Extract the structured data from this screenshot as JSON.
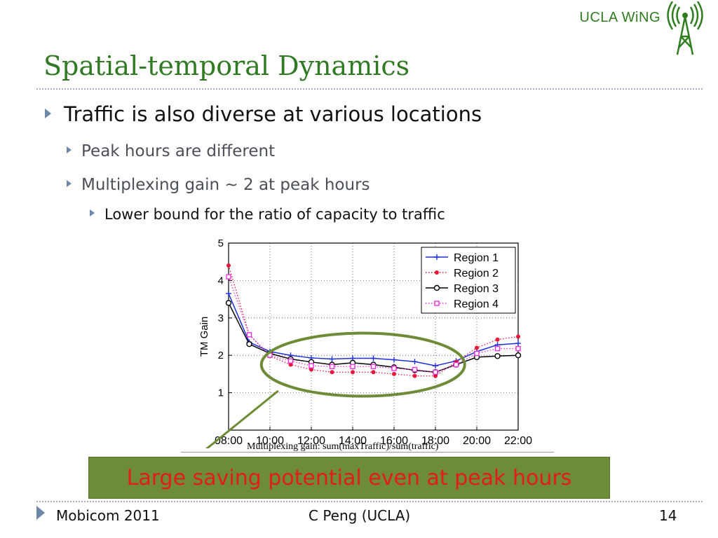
{
  "header": {
    "logo_text": "UCLA WiNG",
    "title": "Spatial-temporal Dynamics"
  },
  "bullets": {
    "level1": "Traffic is also diverse at various locations",
    "level2": [
      "Peak hours are different",
      "Multiplexing gain ~ 2 at peak hours"
    ],
    "level3": "Lower bound for  the ratio of capacity to traffic"
  },
  "caption": "Multiplexing gain: sum(maxTraffic)/sum(traffic)",
  "banner": "Large saving potential even at peak hours",
  "footer": {
    "left": "Mobicom 2011",
    "center": "C Peng (UCLA)",
    "right": "14"
  },
  "colors": {
    "title": "#2f7a22",
    "banner_bg": "#6e8c37",
    "banner_text": "#e31b1b",
    "bullet_arrow": "#6e87a8",
    "ellipse": "#6e8c37"
  },
  "chart_data": {
    "type": "line",
    "xlabel": "",
    "ylabel": "TM Gain",
    "x": [
      8,
      9,
      10,
      11,
      12,
      13,
      14,
      15,
      16,
      17,
      18,
      19,
      20,
      21,
      22
    ],
    "xticks": [
      8,
      10,
      12,
      14,
      16,
      18,
      20,
      22
    ],
    "xtick_labels": [
      "08:00",
      "10:00",
      "12:00",
      "14:00",
      "16:00",
      "18:00",
      "20:00",
      "22:00"
    ],
    "yticks": [
      1,
      2,
      3,
      4,
      5
    ],
    "xlim": [
      8,
      22
    ],
    "ylim": [
      0,
      5
    ],
    "grid": true,
    "legend_position": "top-right",
    "series": [
      {
        "name": "Region 1",
        "color": "#1f2fdc",
        "line": "solid",
        "marker": "plus",
        "values": [
          3.65,
          2.35,
          2.1,
          2.0,
          1.93,
          1.9,
          1.92,
          1.92,
          1.88,
          1.83,
          1.72,
          1.85,
          2.1,
          2.28,
          2.32
        ]
      },
      {
        "name": "Region 2",
        "color": "#e8173c",
        "line": "dotted",
        "marker": "dot",
        "values": [
          4.4,
          2.55,
          1.98,
          1.75,
          1.62,
          1.55,
          1.55,
          1.55,
          1.5,
          1.45,
          1.45,
          1.82,
          2.2,
          2.42,
          2.5
        ]
      },
      {
        "name": "Region 3",
        "color": "#000000",
        "line": "solid",
        "marker": "circle",
        "values": [
          3.4,
          2.3,
          2.05,
          1.9,
          1.82,
          1.75,
          1.8,
          1.75,
          1.68,
          1.6,
          1.55,
          1.75,
          1.95,
          1.98,
          2.0
        ]
      },
      {
        "name": "Region 4",
        "color": "#f030d8",
        "line": "dotted",
        "marker": "square",
        "values": [
          4.1,
          2.55,
          2.0,
          1.85,
          1.72,
          1.7,
          1.7,
          1.7,
          1.65,
          1.62,
          1.55,
          1.75,
          2.05,
          2.18,
          2.18
        ]
      }
    ]
  }
}
